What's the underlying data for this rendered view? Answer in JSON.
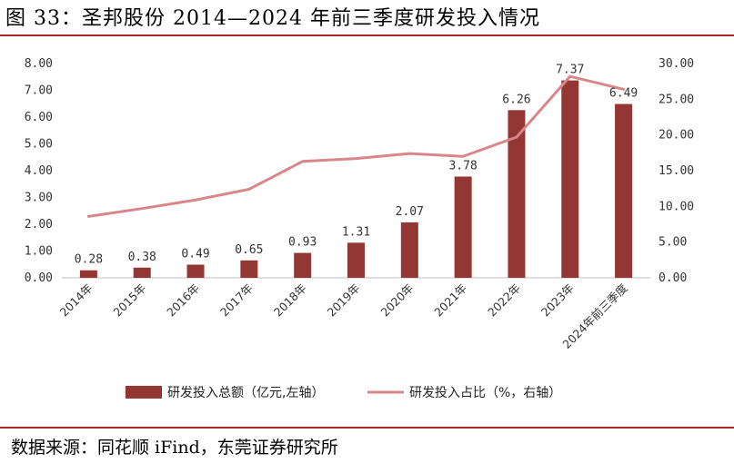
{
  "title": "图 33：圣邦股份 2014—2024 年前三季度研发投入情况",
  "source": "数据来源：同花顺 iFind，东莞证券研究所",
  "colors": {
    "bar": "#943634",
    "line": "#d9868a",
    "rule": "#a02b2b"
  },
  "chart_data": {
    "type": "bar",
    "categories": [
      "2014年",
      "2015年",
      "2016年",
      "2017年",
      "2018年",
      "2019年",
      "2020年",
      "2021年",
      "2022年",
      "2023年",
      "2024年前三季度"
    ],
    "series": [
      {
        "name": "研发投入总额（亿元,左轴）",
        "type": "bar",
        "axis": "left",
        "values": [
          0.28,
          0.38,
          0.49,
          0.65,
          0.93,
          1.31,
          2.07,
          3.78,
          6.26,
          7.37,
          6.49
        ],
        "labels": [
          "0.28",
          "0.38",
          "0.49",
          "0.65",
          "0.93",
          "1.31",
          "2.07",
          "3.78",
          "6.26",
          "7.37",
          "6.49"
        ]
      },
      {
        "name": "研发投入占比（%，右轴）",
        "type": "line",
        "axis": "right",
        "values": [
          8.6,
          9.7,
          10.9,
          12.4,
          16.3,
          16.7,
          17.4,
          17.0,
          19.7,
          28.2,
          26.4
        ]
      }
    ],
    "y_left": {
      "min": 0,
      "max": 8,
      "step": 1,
      "tick_labels": [
        "0.00",
        "1.00",
        "2.00",
        "3.00",
        "4.00",
        "5.00",
        "6.00",
        "7.00",
        "8.00"
      ]
    },
    "y_right": {
      "min": 0,
      "max": 30,
      "step": 5,
      "tick_labels": [
        "0.00",
        "5.00",
        "10.00",
        "15.00",
        "20.00",
        "25.00",
        "30.00"
      ]
    },
    "legend": [
      "研发投入总额（亿元,左轴）",
      "研发投入占比（%，右轴）"
    ],
    "legend_position": "bottom",
    "grid": false
  }
}
